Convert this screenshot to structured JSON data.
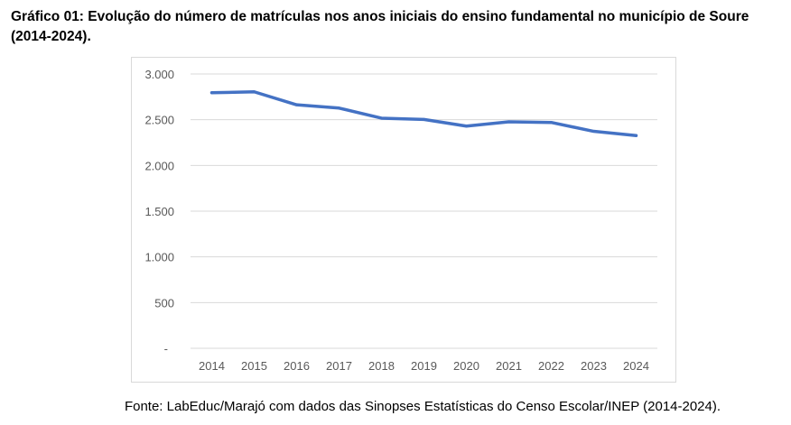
{
  "title": "Gráfico 01: Evolução do número de matrículas nos anos iniciais do ensino fundamental no município de Soure (2014-2024).",
  "source": "Fonte: LabEduc/Marajó com dados das Sinopses Estatísticas do Censo Escolar/INEP (2014-2024).",
  "chart_data": {
    "type": "line",
    "title": "",
    "xlabel": "",
    "ylabel": "",
    "categories": [
      "2014",
      "2015",
      "2016",
      "2017",
      "2018",
      "2019",
      "2020",
      "2021",
      "2022",
      "2023",
      "2024"
    ],
    "values": [
      2795,
      2805,
      2663,
      2627,
      2517,
      2503,
      2430,
      2477,
      2470,
      2373,
      2327
    ],
    "ylim": [
      0,
      3000
    ],
    "yticks": [
      0,
      500,
      1000,
      1500,
      2000,
      2500,
      3000
    ],
    "ytick_labels": [
      "-",
      "500",
      "1.000",
      "1.500",
      "2.000",
      "2.500",
      "3.000"
    ],
    "grid": true,
    "line_color": "#4472c4"
  }
}
